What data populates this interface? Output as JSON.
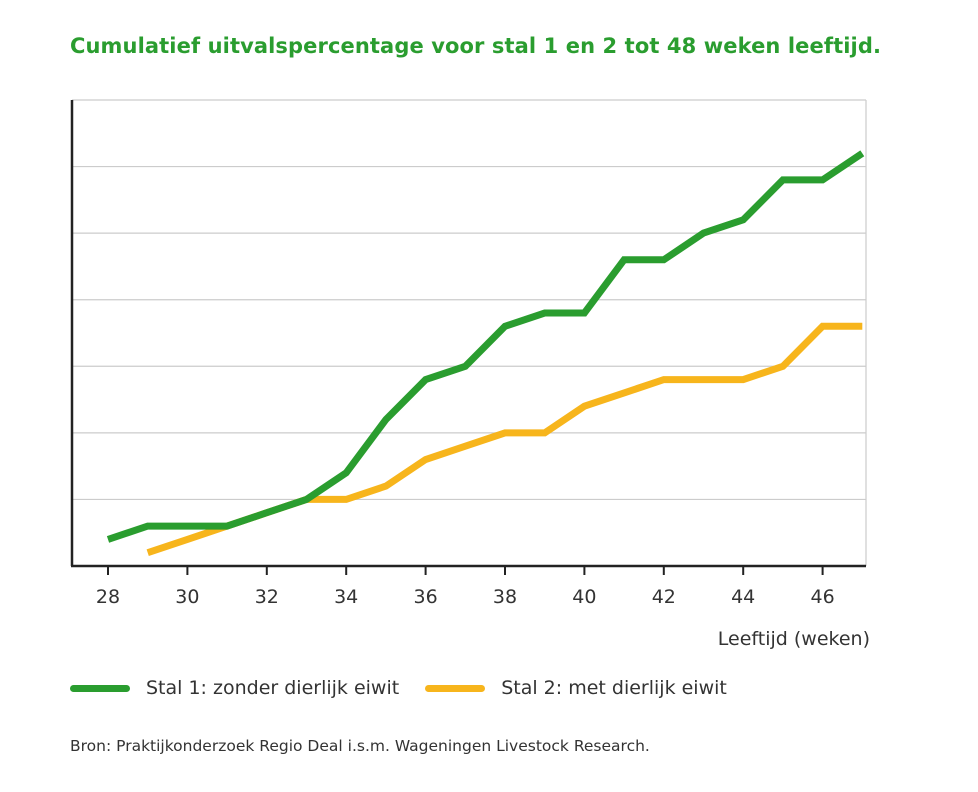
{
  "title": "Cumulatief uitvalspercentage voor stal 1 en 2 tot 48 weken leeftijd.",
  "source": "Bron: Praktijkonderzoek Regio Deal i.s.m. Wageningen Livestock Research.",
  "colors": {
    "title": "#2a9d2f",
    "stal1": "#2a9d2f",
    "stal2": "#f7b51c",
    "grid": "#cccccc",
    "axis": "#222222"
  },
  "chart_data": {
    "type": "line",
    "title": "Cumulatief uitvalspercentage voor stal 1 en 2 tot 48 weken leeftijd.",
    "xlabel": "Leeftijd (weken)",
    "ylabel": "",
    "xlim": [
      27,
      47
    ],
    "ylim": [
      0,
      7
    ],
    "x_ticks": [
      28,
      30,
      32,
      34,
      36,
      38,
      40,
      42,
      44,
      46
    ],
    "y_gridlines": [
      1,
      2,
      3,
      4,
      5,
      6,
      7
    ],
    "y_tick_labels_shown": false,
    "grid": true,
    "legend_position": "bottom",
    "series": [
      {
        "name": "Stal 1: zonder dierlijk eiwit",
        "color": "#2a9d2f",
        "x": [
          28,
          29,
          30,
          31,
          32,
          33,
          34,
          35,
          36,
          37,
          38,
          39,
          40,
          41,
          42,
          43,
          44,
          45,
          46,
          47
        ],
        "y": [
          0.4,
          0.6,
          0.6,
          0.6,
          0.8,
          1.0,
          1.4,
          2.2,
          2.8,
          3.0,
          3.6,
          3.8,
          3.8,
          4.6,
          4.6,
          5.0,
          5.2,
          5.8,
          5.8,
          6.2
        ]
      },
      {
        "name": "Stal 2: met dierlijk eiwit",
        "color": "#f7b51c",
        "x": [
          29,
          30,
          31,
          32,
          33,
          34,
          35,
          36,
          37,
          38,
          39,
          40,
          41,
          42,
          43,
          44,
          45,
          46,
          47
        ],
        "y": [
          0.2,
          0.4,
          0.6,
          0.8,
          1.0,
          1.0,
          1.2,
          1.6,
          1.8,
          2.0,
          2.0,
          2.4,
          2.6,
          2.8,
          2.8,
          2.8,
          3.0,
          3.6,
          3.6
        ]
      }
    ]
  }
}
